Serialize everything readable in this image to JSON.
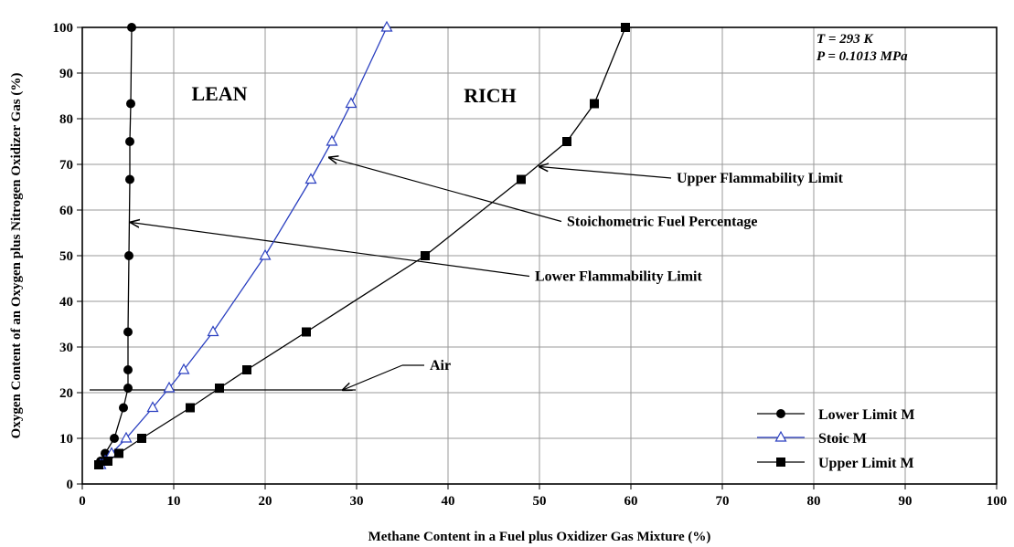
{
  "chart_data": {
    "type": "line",
    "xlabel": "Methane Content in a Fuel plus Oxidizer Gas Mixture (%)",
    "ylabel": "Oxygen Content of an Oxygen plus Nitrogen Oxidizer Gas (%)",
    "xlim": [
      0,
      100
    ],
    "ylim": [
      0,
      100
    ],
    "x_ticks": [
      "0",
      "10",
      "20",
      "30",
      "40",
      "50",
      "60",
      "70",
      "80",
      "90",
      "100"
    ],
    "y_ticks": [
      "0",
      "10",
      "20",
      "30",
      "40",
      "50",
      "60",
      "70",
      "80",
      "90",
      "100"
    ],
    "grid": true,
    "legend_position": "bottom-right",
    "conditions": [
      "T = 293 K",
      "P = 0.1013 MPa"
    ],
    "regions": [
      "LEAN",
      "RICH"
    ],
    "series": [
      {
        "name": "Lower Limit M",
        "color": "#000000",
        "marker": "circle",
        "points": [
          [
            1.8,
            4.2
          ],
          [
            2.0,
            5.0
          ],
          [
            2.5,
            6.7
          ],
          [
            3.5,
            10.0
          ],
          [
            4.5,
            16.7
          ],
          [
            5.0,
            21.0
          ],
          [
            5.0,
            25.0
          ],
          [
            5.0,
            33.3
          ],
          [
            5.1,
            50.0
          ],
          [
            5.2,
            66.7
          ],
          [
            5.2,
            75.0
          ],
          [
            5.3,
            83.3
          ],
          [
            5.4,
            100.0
          ]
        ]
      },
      {
        "name": "Stoic M",
        "color": "#2a3fc0",
        "marker": "triangle",
        "points": [
          [
            2.0,
            4.2
          ],
          [
            2.5,
            5.0
          ],
          [
            3.2,
            6.7
          ],
          [
            4.8,
            10.0
          ],
          [
            7.7,
            16.7
          ],
          [
            9.5,
            21.0
          ],
          [
            11.1,
            25.0
          ],
          [
            14.3,
            33.3
          ],
          [
            20.0,
            50.0
          ],
          [
            25.0,
            66.7
          ],
          [
            27.3,
            75.0
          ],
          [
            29.4,
            83.3
          ],
          [
            33.3,
            100.0
          ]
        ]
      },
      {
        "name": "Upper Limit M",
        "color": "#000000",
        "marker": "square",
        "points": [
          [
            1.8,
            4.2
          ],
          [
            2.8,
            5.0
          ],
          [
            4.0,
            6.7
          ],
          [
            6.5,
            10.0
          ],
          [
            11.8,
            16.7
          ],
          [
            15.0,
            21.0
          ],
          [
            18.0,
            25.0
          ],
          [
            24.5,
            33.3
          ],
          [
            37.5,
            50.0
          ],
          [
            48.0,
            66.7
          ],
          [
            53.0,
            75.0
          ],
          [
            56.0,
            83.3
          ],
          [
            59.4,
            100.0
          ]
        ]
      }
    ],
    "annotations": [
      {
        "text": "Upper Flammability Limit",
        "text_at": [
          65,
          66
        ],
        "arrow_to": [
          50,
          69.5
        ],
        "elbow": null
      },
      {
        "text": "Stoichometric Fuel Percentage",
        "text_at": [
          53,
          56.5
        ],
        "arrow_to": [
          27,
          71.5
        ],
        "elbow": null
      },
      {
        "text": "Lower Flammability Limit",
        "text_at": [
          49.5,
          44.5
        ],
        "arrow_to": [
          5.3,
          57.3
        ],
        "elbow": null
      },
      {
        "text": "Air",
        "text_at": [
          35.5,
          24
        ],
        "arrow_to": [
          28.5,
          20.6
        ],
        "elbow": [
          35,
          26
        ]
      }
    ],
    "air_line": {
      "y": 20.6,
      "x_from": 0.8,
      "x_to": 28.5
    }
  }
}
